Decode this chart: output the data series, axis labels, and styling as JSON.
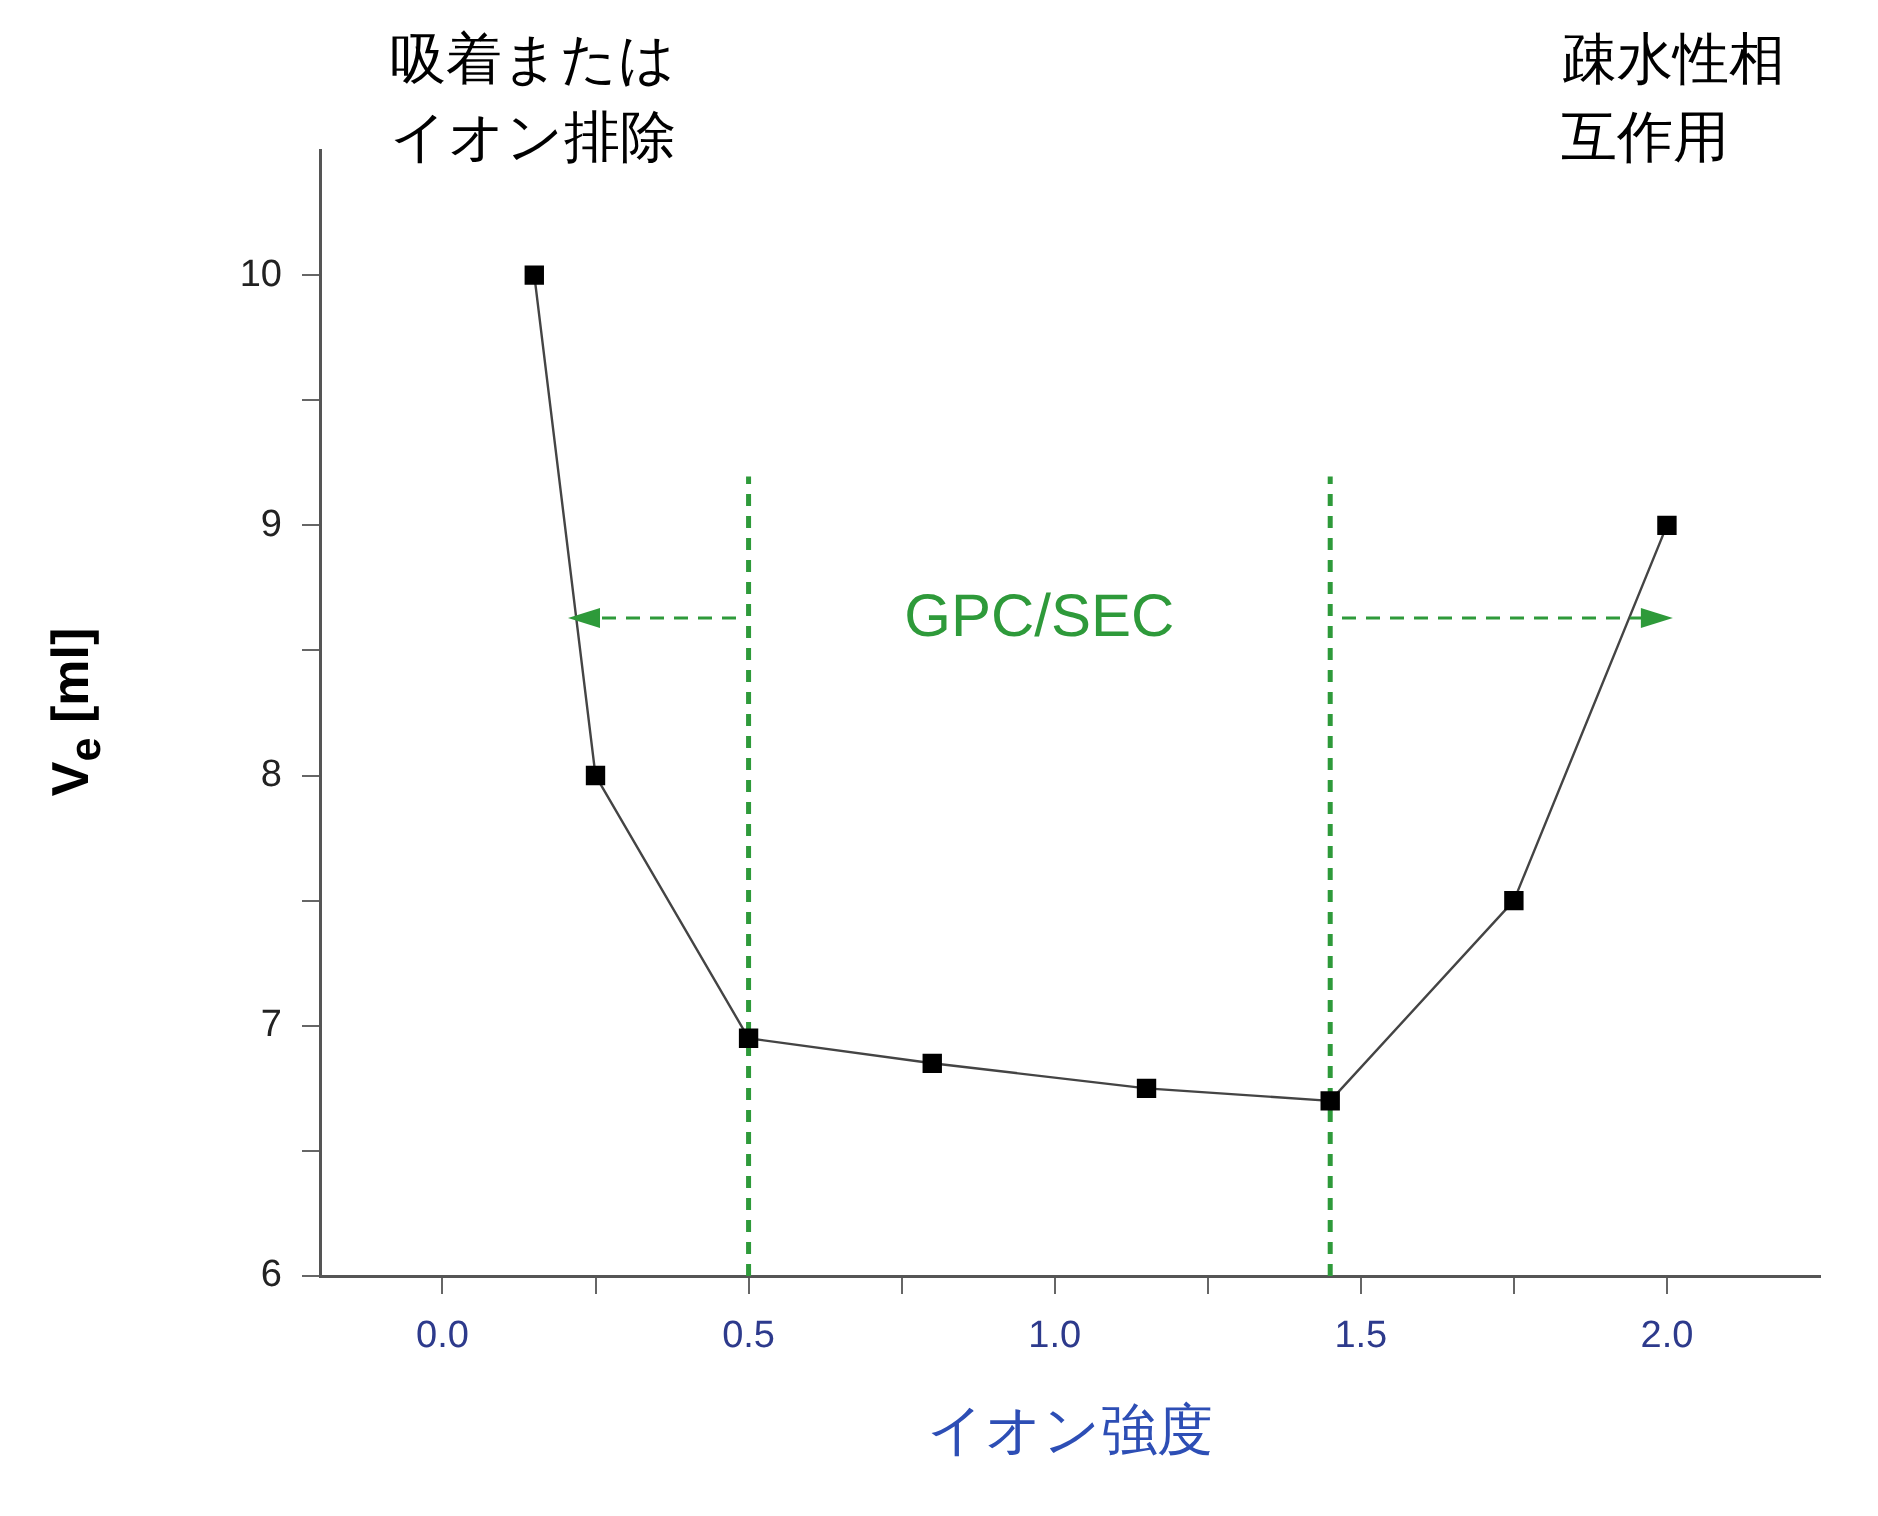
{
  "chart_data": {
    "type": "line",
    "xlabel": "イオン強度",
    "ylabel": "V$_{e}$ [ml]",
    "xlim": [
      -0.2,
      2.25
    ],
    "xticks": [
      {
        "value": 0,
        "label": "0.0"
      },
      {
        "value": 0.25,
        "label": null
      },
      {
        "value": 0.5,
        "label": "0.5"
      },
      {
        "value": 0.75,
        "label": null
      },
      {
        "value": 1.0,
        "label": "1.0"
      },
      {
        "value": 1.25,
        "label": null
      },
      {
        "value": 1.5,
        "label": "1.5"
      },
      {
        "value": 1.75,
        "label": null
      },
      {
        "value": 2.0,
        "label": "2.0"
      }
    ],
    "ylim": [
      6,
      10.5
    ],
    "yticks": [
      6,
      {
        "value": 6.5,
        "label": null
      },
      7,
      {
        "value": 7.5,
        "label": null
      },
      8,
      {
        "value": 8.5,
        "label": null
      },
      9,
      {
        "value": 9.5,
        "label": null
      },
      10
    ],
    "series": [
      {
        "color": "#000000",
        "x": [
          0.15,
          0.25,
          0.5,
          0.8,
          1.15,
          1.45,
          1.75,
          2.0
        ],
        "values": [
          10,
          8,
          6.95,
          6.85,
          6.75,
          6.7,
          7.5,
          9
        ]
      }
    ],
    "marker": "square",
    "grid": false,
    "legend": false,
    "ref_lines": [
      {
        "axis": "x",
        "value": 0.5,
        "color": "#2e9a3a",
        "line_style": "dashed"
      },
      {
        "axis": "x",
        "value": 1.45,
        "color": "#2e9a3a",
        "line_style": "dashed"
      }
    ],
    "annotations": [
      "吸着またはイオン排除",
      "疎水性相互作用",
      "GPC/SEC"
    ]
  }
}
